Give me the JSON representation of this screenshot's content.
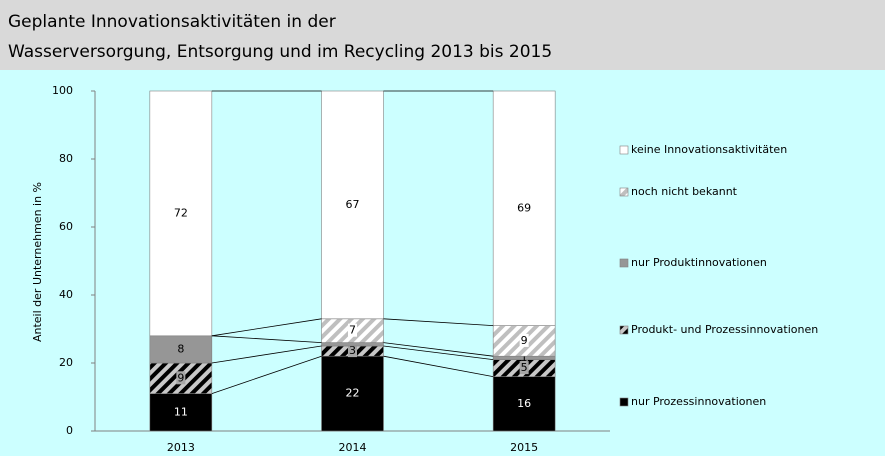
{
  "chart_data": {
    "type": "stacked_bar",
    "title": "Geplante Innovationsaktivitäten in der",
    "subtitle": "Wasserversorgung, Entsorgung und im Recycling 2013 bis 2015",
    "y_label": "Anteil der Unternehmen in %",
    "categories": [
      "2013",
      "2014",
      "2015"
    ],
    "series": [
      {
        "name": "nur Prozessinnovationen",
        "color": "#000000",
        "values": [
          11,
          22,
          16
        ],
        "value_labels": [
          "11",
          "22",
          "16"
        ]
      },
      {
        "name": "Produkt- und Prozessinnovationen",
        "color": "#000000",
        "hatch": "#c8c8c8",
        "values": [
          9,
          3,
          5
        ],
        "value_labels": [
          "9",
          "3",
          "5"
        ]
      },
      {
        "name": "nur Produktinnovationen",
        "color": "#969696",
        "values": [
          8,
          1,
          1
        ],
        "value_labels": [
          "8",
          null,
          "1"
        ]
      },
      {
        "name": "noch nicht bekannt",
        "color": "#ffffff",
        "hatch": "#bfbfbf",
        "values": [
          0,
          7,
          9
        ],
        "value_labels": [
          null,
          "7",
          "9"
        ]
      },
      {
        "name": "keine Innovationsaktivitäten",
        "color": "#ffffff",
        "values": [
          72,
          67,
          69
        ],
        "value_labels": [
          "72",
          "67",
          "69"
        ]
      }
    ],
    "ylim": [
      0,
      100
    ],
    "yticks": [
      0,
      20,
      40,
      60,
      80,
      100
    ],
    "series_lines": true,
    "legend": "right"
  }
}
